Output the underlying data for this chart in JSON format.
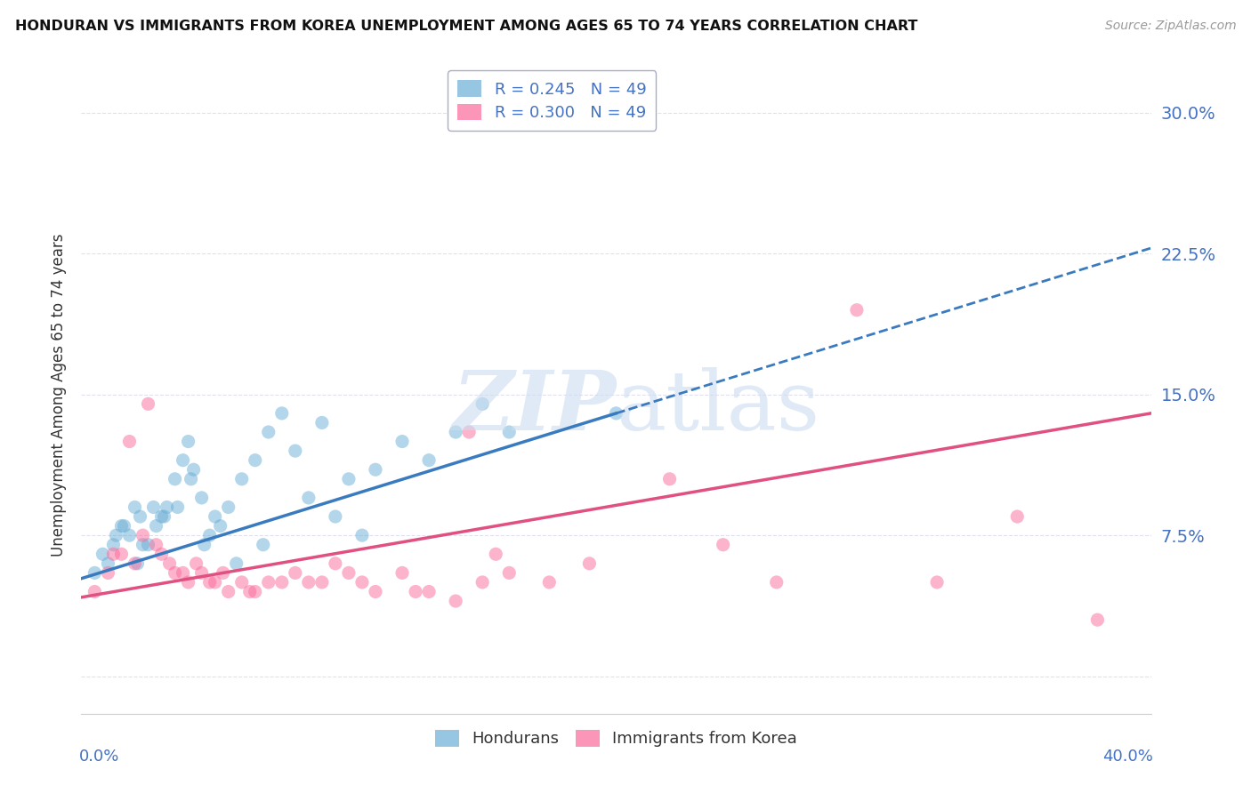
{
  "title": "HONDURAN VS IMMIGRANTS FROM KOREA UNEMPLOYMENT AMONG AGES 65 TO 74 YEARS CORRELATION CHART",
  "source": "Source: ZipAtlas.com",
  "ylabel": "Unemployment Among Ages 65 to 74 years",
  "xlim": [
    0.0,
    40.0
  ],
  "ylim": [
    -2.0,
    32.0
  ],
  "yticks": [
    0.0,
    7.5,
    15.0,
    22.5,
    30.0
  ],
  "ytick_labels": [
    "",
    "7.5%",
    "15.0%",
    "22.5%",
    "30.0%"
  ],
  "legend_r_entries": [
    {
      "label": "R = 0.245   N = 49",
      "color": "#6baed6"
    },
    {
      "label": "R = 0.300   N = 49",
      "color": "#fb6a9a"
    }
  ],
  "legend_footer": [
    "Hondurans",
    "Immigrants from Korea"
  ],
  "hondurans_color": "#6baed6",
  "korea_color": "#fb6a9a",
  "trend_hondurans_color": "#3a7bbf",
  "trend_korea_color": "#e05080",
  "background_color": "#ffffff",
  "grid_color": "#e0e0ee",
  "watermark_color": "#ccddf0",
  "hondurans_x": [
    0.5,
    0.8,
    1.0,
    1.2,
    1.5,
    1.8,
    2.0,
    2.2,
    2.5,
    2.8,
    3.0,
    3.2,
    3.5,
    3.8,
    4.0,
    4.2,
    4.5,
    4.8,
    5.0,
    5.5,
    6.0,
    6.5,
    7.0,
    8.0,
    9.0,
    10.0,
    11.0,
    12.0,
    13.0,
    14.0,
    15.0,
    16.0,
    1.3,
    1.6,
    2.1,
    2.3,
    2.7,
    3.1,
    3.6,
    4.1,
    4.6,
    5.2,
    5.8,
    6.8,
    7.5,
    8.5,
    9.5,
    10.5,
    20.0
  ],
  "hondurans_y": [
    5.5,
    6.5,
    6.0,
    7.0,
    8.0,
    7.5,
    9.0,
    8.5,
    7.0,
    8.0,
    8.5,
    9.0,
    10.5,
    11.5,
    12.5,
    11.0,
    9.5,
    7.5,
    8.5,
    9.0,
    10.5,
    11.5,
    13.0,
    12.0,
    13.5,
    10.5,
    11.0,
    12.5,
    11.5,
    13.0,
    14.5,
    13.0,
    7.5,
    8.0,
    6.0,
    7.0,
    9.0,
    8.5,
    9.0,
    10.5,
    7.0,
    8.0,
    6.0,
    7.0,
    14.0,
    9.5,
    8.5,
    7.5,
    14.0
  ],
  "korea_x": [
    0.5,
    1.0,
    1.5,
    2.0,
    2.5,
    3.0,
    3.5,
    4.0,
    4.5,
    5.0,
    5.5,
    6.0,
    6.5,
    7.0,
    8.0,
    9.0,
    10.0,
    11.0,
    12.0,
    13.0,
    14.0,
    15.0,
    16.0,
    1.2,
    1.8,
    2.3,
    2.8,
    3.3,
    3.8,
    4.3,
    4.8,
    5.3,
    6.3,
    7.5,
    8.5,
    9.5,
    10.5,
    12.5,
    14.5,
    22.0,
    24.0,
    26.0,
    29.0,
    32.0,
    35.0,
    15.5,
    17.5,
    19.0,
    38.0
  ],
  "korea_y": [
    4.5,
    5.5,
    6.5,
    6.0,
    14.5,
    6.5,
    5.5,
    5.0,
    5.5,
    5.0,
    4.5,
    5.0,
    4.5,
    5.0,
    5.5,
    5.0,
    5.5,
    4.5,
    5.5,
    4.5,
    4.0,
    5.0,
    5.5,
    6.5,
    12.5,
    7.5,
    7.0,
    6.0,
    5.5,
    6.0,
    5.0,
    5.5,
    4.5,
    5.0,
    5.0,
    6.0,
    5.0,
    4.5,
    13.0,
    10.5,
    7.0,
    5.0,
    19.5,
    5.0,
    8.5,
    6.5,
    5.0,
    6.0,
    3.0
  ],
  "trend_h_x0": 0.0,
  "trend_h_y0": 5.2,
  "trend_h_x1": 20.0,
  "trend_h_y1": 14.0,
  "trend_k_x0": 0.0,
  "trend_k_y0": 4.2,
  "trend_k_x1": 40.0,
  "trend_k_y1": 14.0
}
